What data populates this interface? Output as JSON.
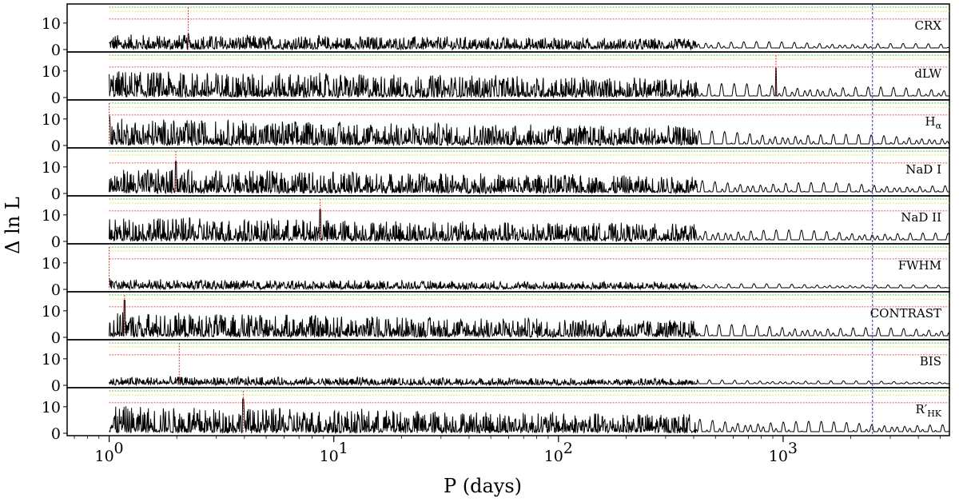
{
  "chart_data": {
    "type": "line",
    "xlabel": "P (days)",
    "ylabel": "Δ ln L",
    "x_scale": "log",
    "xlim": [
      0.65,
      5500
    ],
    "ylim": [
      0,
      16
    ],
    "x_ticks": [
      {
        "value": 1,
        "label": "10",
        "exp": "0"
      },
      {
        "value": 10,
        "label": "10",
        "exp": "1"
      },
      {
        "value": 100,
        "label": "10",
        "exp": "2"
      },
      {
        "value": 1000,
        "label": "10",
        "exp": "3"
      }
    ],
    "y_ticks": [
      0,
      10
    ],
    "threshold_levels": [
      {
        "value": 11.5,
        "color": "#dd2222"
      },
      {
        "value": 14.5,
        "color": "#dddd22"
      },
      {
        "value": 16.0,
        "color": "#22aa22"
      }
    ],
    "reference_period": {
      "value": 2500,
      "color": "#3333cc"
    },
    "panels": [
      {
        "label": "CRX",
        "peak_period": 2.25,
        "peak_value": 6,
        "noise": 5.5
      },
      {
        "label": "dLW",
        "peak_period": 930,
        "peak_value": 11,
        "noise": 10
      },
      {
        "label": "H",
        "sub": "α",
        "peak_period": 1.0,
        "peak_value": 11,
        "noise": 10
      },
      {
        "label": "NaD I",
        "peak_period": 1.98,
        "peak_value": 12,
        "noise": 9
      },
      {
        "label": "NaD II",
        "peak_period": 8.7,
        "peak_value": 12,
        "noise": 9
      },
      {
        "label": "FWHM",
        "peak_period": 1.0,
        "peak_value": 4,
        "noise": 3.5
      },
      {
        "label": "CONTRAST",
        "peak_period": 1.17,
        "peak_value": 14,
        "noise": 9
      },
      {
        "label": "BIS",
        "peak_period": 2.05,
        "peak_value": 3,
        "noise": 3
      },
      {
        "label": "R′",
        "sub": "HK",
        "peak_period": 3.95,
        "peak_value": 13,
        "noise": 10
      }
    ]
  }
}
